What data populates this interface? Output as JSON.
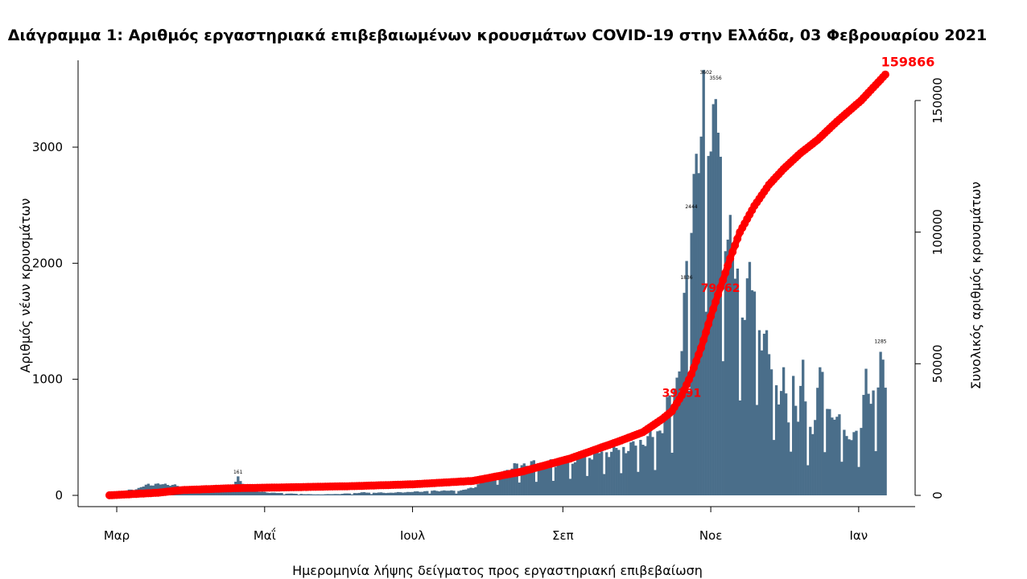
{
  "chart_data": {
    "type": "bar",
    "title": "Διάγραμμα 1: Αριθμός εργαστηριακά επιβεβαιωμένων κρουσμάτων COVID-19 στην Ελλάδα, 03 Φεβρουαρίου 2021",
    "xlabel": "Ημερομηνία λήψης δείγματος προς εργαστηριακή επιβεβαίωση",
    "ylabel": "Αριθμός νέων κρουσμάτων",
    "y2label": "Συνολικός αριθμός κρουσμάτων",
    "ylim": [
      0,
      3500
    ],
    "y2lim": [
      0,
      160000
    ],
    "yticks": [
      0,
      1000,
      2000,
      3000
    ],
    "y2ticks": [
      0,
      50000,
      100000,
      150000
    ],
    "xticks": [
      {
        "label": "Μαρ",
        "day": 3
      },
      {
        "label": "Μαΐ",
        "day": 64
      },
      {
        "label": "Ιουλ",
        "day": 125
      },
      {
        "label": "Σεπ",
        "day": 187
      },
      {
        "label": "Νοε",
        "day": 248
      },
      {
        "label": "Ιαν",
        "day": 309
      }
    ],
    "bar_color": "#4a6e8a",
    "line_color": "#ff0000",
    "bar_control_points": [
      [
        0,
        20
      ],
      [
        5,
        30
      ],
      [
        8,
        45
      ],
      [
        12,
        60
      ],
      [
        16,
        95
      ],
      [
        20,
        95
      ],
      [
        25,
        95
      ],
      [
        30,
        70
      ],
      [
        35,
        50
      ],
      [
        40,
        35
      ],
      [
        45,
        35
      ],
      [
        50,
        40
      ],
      [
        53,
        161
      ],
      [
        57,
        40
      ],
      [
        65,
        25
      ],
      [
        75,
        15
      ],
      [
        85,
        8
      ],
      [
        95,
        12
      ],
      [
        105,
        25
      ],
      [
        115,
        22
      ],
      [
        125,
        30
      ],
      [
        135,
        40
      ],
      [
        145,
        40
      ],
      [
        150,
        70
      ],
      [
        155,
        120
      ],
      [
        160,
        180
      ],
      [
        165,
        230
      ],
      [
        170,
        270
      ],
      [
        175,
        270
      ],
      [
        180,
        270
      ],
      [
        185,
        280
      ],
      [
        190,
        300
      ],
      [
        195,
        330
      ],
      [
        200,
        360
      ],
      [
        205,
        380
      ],
      [
        210,
        400
      ],
      [
        215,
        420
      ],
      [
        220,
        470
      ],
      [
        225,
        510
      ],
      [
        228,
        600
      ],
      [
        231,
        820
      ],
      [
        234,
        1000
      ],
      [
        236,
        1300
      ],
      [
        238,
        1836
      ],
      [
        240,
        2444
      ],
      [
        242,
        3000
      ],
      [
        244,
        2900
      ],
      [
        246,
        3602
      ],
      [
        248,
        3000
      ],
      [
        250,
        3556
      ],
      [
        252,
        2600
      ],
      [
        254,
        2400
      ],
      [
        256,
        2300
      ],
      [
        258,
        1900
      ],
      [
        260,
        1700
      ],
      [
        262,
        1700
      ],
      [
        264,
        1900
      ],
      [
        266,
        1700
      ],
      [
        268,
        1500
      ],
      [
        270,
        1395
      ],
      [
        272,
        1200
      ],
      [
        274,
        1000
      ],
      [
        276,
        900
      ],
      [
        278,
        1000
      ],
      [
        280,
        650
      ],
      [
        282,
        1000
      ],
      [
        284,
        700
      ],
      [
        286,
        1050
      ],
      [
        288,
        600
      ],
      [
        290,
        550
      ],
      [
        292,
        900
      ],
      [
        294,
        1040
      ],
      [
        296,
        750
      ],
      [
        298,
        730
      ],
      [
        300,
        600
      ],
      [
        302,
        700
      ],
      [
        304,
        500
      ],
      [
        306,
        500
      ],
      [
        308,
        500
      ],
      [
        310,
        650
      ],
      [
        312,
        1071
      ],
      [
        314,
        760
      ],
      [
        316,
        850
      ],
      [
        318,
        1285
      ],
      [
        320,
        935
      ]
    ],
    "dip_days": [
      72,
      78,
      100,
      108,
      132,
      143,
      160,
      169,
      176,
      183,
      190,
      197,
      204,
      211,
      218,
      225,
      232,
      239,
      246,
      253,
      260,
      267,
      274,
      281,
      288,
      295,
      302,
      309,
      316
    ],
    "cumulative_control_points": [
      [
        0,
        20
      ],
      [
        20,
        1000
      ],
      [
        30,
        2000
      ],
      [
        50,
        2700
      ],
      [
        70,
        3000
      ],
      [
        100,
        3500
      ],
      [
        125,
        4200
      ],
      [
        150,
        5500
      ],
      [
        170,
        9000
      ],
      [
        190,
        14000
      ],
      [
        210,
        20500
      ],
      [
        220,
        24000
      ],
      [
        228,
        29000
      ],
      [
        232,
        32000
      ],
      [
        236,
        38000
      ],
      [
        240,
        46000
      ],
      [
        244,
        56000
      ],
      [
        248,
        68000
      ],
      [
        252,
        79000
      ],
      [
        256,
        90000
      ],
      [
        260,
        100000
      ],
      [
        266,
        110000
      ],
      [
        272,
        118000
      ],
      [
        278,
        124000
      ],
      [
        285,
        130000
      ],
      [
        292,
        135000
      ],
      [
        300,
        142000
      ],
      [
        310,
        150000
      ],
      [
        320,
        159866
      ]
    ],
    "peak_labels": [
      {
        "day": 246,
        "value": 3602,
        "label": "3602"
      },
      {
        "day": 250,
        "value": 3556,
        "label": "3556"
      },
      {
        "day": 238,
        "value": 1836,
        "label": "1836"
      },
      {
        "day": 240,
        "value": 2444,
        "label": "2444"
      },
      {
        "day": 53,
        "value": 161,
        "label": "161"
      },
      {
        "day": 318,
        "value": 1285,
        "label": "1285"
      }
    ],
    "annotations": [
      {
        "text": "159866",
        "day": 320,
        "cumulative": 159866,
        "position": "end"
      },
      {
        "text": "79062",
        "day": 252,
        "cumulative": 79062,
        "position": "mid"
      },
      {
        "text": "39291",
        "day": 236,
        "cumulative": 39291,
        "position": "mid"
      }
    ]
  }
}
